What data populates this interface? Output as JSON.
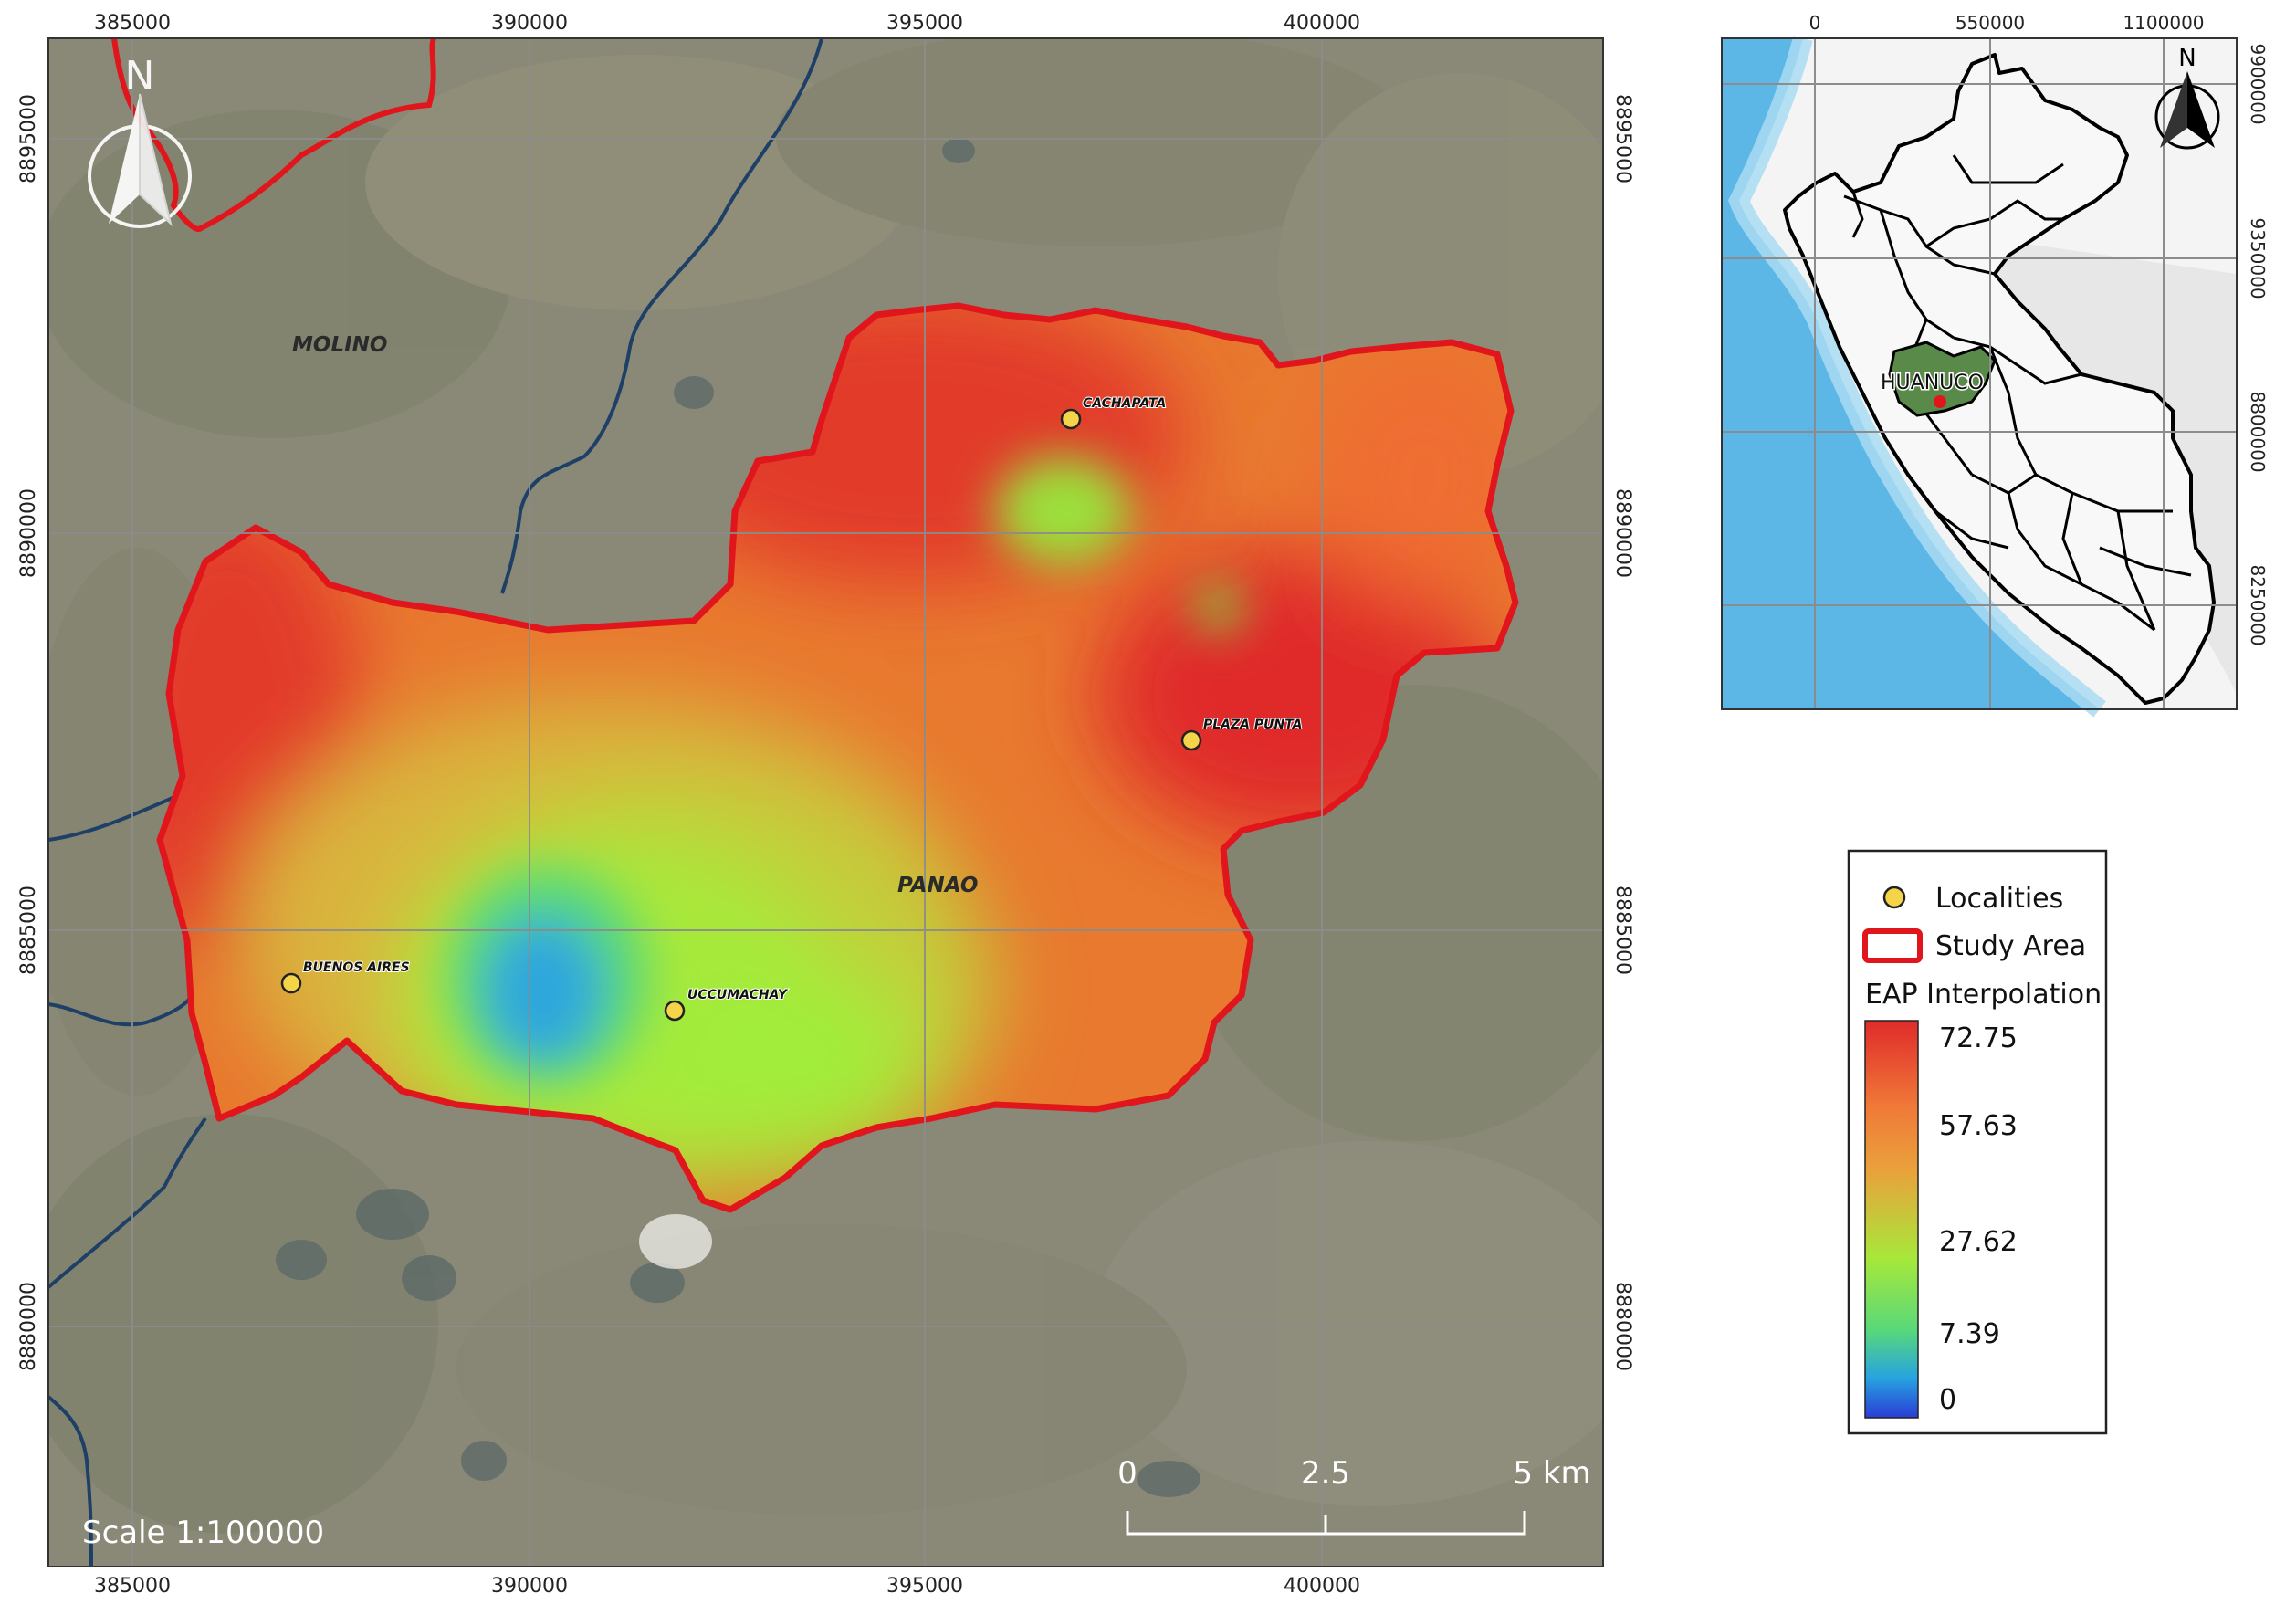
{
  "main_map": {
    "x_ticks": [
      "385000",
      "390000",
      "395000",
      "400000"
    ],
    "y_ticks": [
      "8895000",
      "8890000",
      "8885000",
      "8880000"
    ],
    "districts": [
      "MOLINO",
      "PANAO"
    ],
    "localities": [
      "CACHAPATA",
      "PLAZA PUNTA",
      "BUENOS AIRES",
      "UCCUMACHAY"
    ],
    "north_label": "N",
    "scale_text": "Scale 1:100000",
    "scalebar": [
      "0",
      "2.5",
      "5 km"
    ]
  },
  "inset_map": {
    "x_ticks": [
      "0",
      "550000",
      "1100000"
    ],
    "y_ticks": [
      "9900000",
      "9350000",
      "8800000",
      "8250000"
    ],
    "region_label": "HUANUCO",
    "north_label": "N"
  },
  "legend": {
    "localities": "Localities",
    "study_area": "Study Area",
    "interpolation_title": "EAP Interpolation",
    "values": [
      "72.75",
      "57.63",
      "27.62",
      "7.39",
      "0"
    ]
  },
  "colors": {
    "study_area_border": "#e0161c",
    "locality_fill": "#f5d44a",
    "river": "#1e3f66",
    "ramp_high": "#e02b2b",
    "ramp_mid": "#9df03a",
    "ramp_low": "#2a3cd6"
  }
}
